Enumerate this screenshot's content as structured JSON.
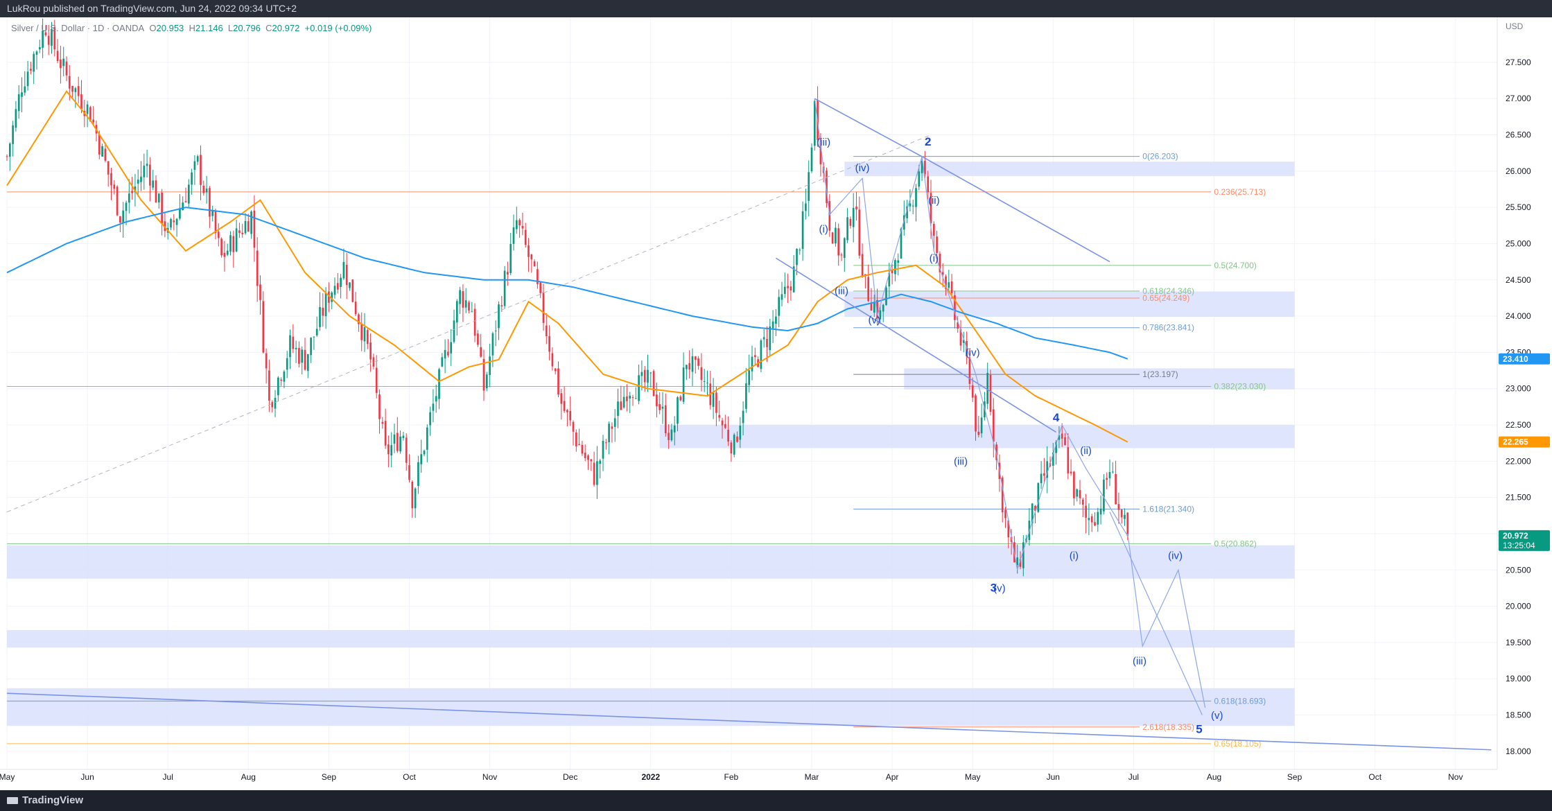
{
  "header": {
    "publisher": "LukRou published on TradingView.com, Jun 24, 2022 09:34 UTC+2"
  },
  "legend": {
    "symbol": "Silver / U.S. Dollar · 1D · OANDA",
    "o_label": "O",
    "o": "20.953",
    "h_label": "H",
    "h": "21.146",
    "l_label": "L",
    "l": "20.796",
    "c_label": "C",
    "c": "20.972",
    "change": "+0.019 (+0.09%)"
  },
  "footer": {
    "brand": "TradingView"
  },
  "colors": {
    "up": "#089981",
    "down": "#f23645",
    "ema_fast": "#ff9800",
    "ema_slow": "#2196f3",
    "zone": "#d9e1fb",
    "trendline": "#7b93e6",
    "wave_label": "#1848cc",
    "fib_orange": "#ff8a65",
    "fib_green": "#81c784",
    "fib_blue": "#6f9cd3"
  },
  "chart_data": {
    "type": "candlestick",
    "currency": "USD",
    "price_axis": {
      "ylim": [
        17.75,
        28.12
      ],
      "ticks": [
        18.0,
        18.5,
        19.0,
        19.5,
        20.0,
        20.5,
        21.0,
        21.5,
        22.0,
        22.5,
        23.0,
        23.5,
        24.0,
        24.5,
        25.0,
        25.5,
        26.0,
        26.5,
        27.0,
        27.5
      ],
      "tick_labels": [
        "18.000",
        "18.500",
        "19.000",
        "19.500",
        "20.000",
        "20.500",
        "21.000",
        "21.500",
        "22.000",
        "22.500",
        "23.000",
        "23.500",
        "24.000",
        "24.500",
        "25.000",
        "25.500",
        "26.000",
        "26.500",
        "27.000",
        "27.500"
      ],
      "last_price": "20.972",
      "countdown": "13:25:04",
      "ema_fast_value": "22.265",
      "ema_slow_value": "23.410"
    },
    "time_axis": {
      "labels": [
        "May",
        "Jun",
        "Jul",
        "Aug",
        "Sep",
        "Oct",
        "Nov",
        "Dec",
        "2022",
        "Feb",
        "Mar",
        "Apr",
        "May",
        "Jun",
        "Jul",
        "Aug",
        "Sep",
        "Oct",
        "Nov"
      ],
      "positions": [
        0,
        27,
        54,
        81,
        108,
        135,
        162,
        189,
        216,
        243,
        270,
        297,
        324,
        351,
        378,
        405,
        432,
        459,
        486
      ]
    },
    "anchors": [
      [
        0,
        26.2
      ],
      [
        5,
        27.2
      ],
      [
        13,
        28.0
      ],
      [
        20,
        27.3
      ],
      [
        28,
        26.8
      ],
      [
        38,
        25.4
      ],
      [
        47,
        26.1
      ],
      [
        54,
        25.1
      ],
      [
        64,
        26.1
      ],
      [
        72,
        24.8
      ],
      [
        82,
        25.4
      ],
      [
        88,
        22.8
      ],
      [
        95,
        23.6
      ],
      [
        100,
        23.4
      ],
      [
        108,
        24.3
      ],
      [
        113,
        24.7
      ],
      [
        122,
        23.4
      ],
      [
        127,
        22.1
      ],
      [
        133,
        22.4
      ],
      [
        136,
        21.5
      ],
      [
        142,
        22.6
      ],
      [
        148,
        23.6
      ],
      [
        152,
        24.3
      ],
      [
        156,
        24.1
      ],
      [
        160,
        23.0
      ],
      [
        165,
        24.1
      ],
      [
        171,
        25.3
      ],
      [
        176,
        24.7
      ],
      [
        181,
        23.8
      ],
      [
        186,
        22.8
      ],
      [
        191,
        22.3
      ],
      [
        197,
        21.8
      ],
      [
        203,
        22.5
      ],
      [
        208,
        23.0
      ],
      [
        216,
        23.1
      ],
      [
        223,
        22.3
      ],
      [
        228,
        23.4
      ],
      [
        235,
        23.0
      ],
      [
        240,
        22.5
      ],
      [
        244,
        22.2
      ],
      [
        249,
        23.2
      ],
      [
        255,
        23.7
      ],
      [
        260,
        24.2
      ],
      [
        264,
        24.6
      ],
      [
        268,
        25.5
      ],
      [
        271,
        26.9
      ],
      [
        276,
        25.3
      ],
      [
        280,
        24.8
      ],
      [
        284,
        25.6
      ],
      [
        288,
        24.4
      ],
      [
        293,
        24.0
      ],
      [
        298,
        24.8
      ],
      [
        303,
        25.5
      ],
      [
        307,
        26.2
      ],
      [
        311,
        25.0
      ],
      [
        315,
        24.5
      ],
      [
        319,
        23.8
      ],
      [
        323,
        23.2
      ],
      [
        326,
        22.2
      ],
      [
        329,
        23.2
      ],
      [
        332,
        22.0
      ],
      [
        336,
        20.9
      ],
      [
        339,
        20.5
      ],
      [
        342,
        21.0
      ],
      [
        348,
        21.8
      ],
      [
        354,
        22.3
      ],
      [
        358,
        21.6
      ],
      [
        362,
        21.2
      ],
      [
        366,
        21.3
      ],
      [
        370,
        21.9
      ],
      [
        374,
        21.2
      ],
      [
        376,
        20.97
      ]
    ],
    "ema_fast_anchors": [
      [
        0,
        25.8
      ],
      [
        20,
        27.1
      ],
      [
        28,
        26.7
      ],
      [
        45,
        25.6
      ],
      [
        60,
        24.9
      ],
      [
        75,
        25.3
      ],
      [
        85,
        25.6
      ],
      [
        100,
        24.6
      ],
      [
        115,
        24.0
      ],
      [
        130,
        23.6
      ],
      [
        145,
        23.1
      ],
      [
        155,
        23.3
      ],
      [
        165,
        23.4
      ],
      [
        175,
        24.2
      ],
      [
        185,
        23.9
      ],
      [
        200,
        23.2
      ],
      [
        215,
        23.0
      ],
      [
        235,
        22.9
      ],
      [
        250,
        23.3
      ],
      [
        262,
        23.6
      ],
      [
        272,
        24.2
      ],
      [
        282,
        24.5
      ],
      [
        292,
        24.6
      ],
      [
        305,
        24.7
      ],
      [
        315,
        24.4
      ],
      [
        325,
        23.8
      ],
      [
        335,
        23.2
      ],
      [
        345,
        22.9
      ],
      [
        355,
        22.7
      ],
      [
        365,
        22.5
      ],
      [
        376,
        22.265
      ]
    ],
    "ema_slow_anchors": [
      [
        0,
        24.6
      ],
      [
        20,
        25.0
      ],
      [
        40,
        25.3
      ],
      [
        60,
        25.5
      ],
      [
        80,
        25.4
      ],
      [
        100,
        25.1
      ],
      [
        120,
        24.8
      ],
      [
        140,
        24.6
      ],
      [
        160,
        24.5
      ],
      [
        175,
        24.5
      ],
      [
        190,
        24.4
      ],
      [
        210,
        24.2
      ],
      [
        230,
        24.0
      ],
      [
        250,
        23.85
      ],
      [
        262,
        23.8
      ],
      [
        272,
        23.9
      ],
      [
        282,
        24.1
      ],
      [
        292,
        24.2
      ],
      [
        300,
        24.3
      ],
      [
        310,
        24.2
      ],
      [
        320,
        24.05
      ],
      [
        332,
        23.9
      ],
      [
        345,
        23.7
      ],
      [
        358,
        23.6
      ],
      [
        370,
        23.5
      ],
      [
        376,
        23.41
      ]
    ],
    "zones": [
      {
        "x0": 281,
        "x1": 432,
        "y0": 25.93,
        "y1": 26.13
      },
      {
        "x0": 281,
        "x1": 432,
        "y0": 23.99,
        "y1": 24.34
      },
      {
        "x0": 301,
        "x1": 432,
        "y0": 22.99,
        "y1": 23.28
      },
      {
        "x0": 219,
        "x1": 432,
        "y0": 22.18,
        "y1": 22.5
      },
      {
        "x0": 0,
        "x1": 432,
        "y0": 20.38,
        "y1": 20.84
      },
      {
        "x0": 0,
        "x1": 432,
        "y0": 19.43,
        "y1": 19.67
      },
      {
        "x0": 0,
        "x1": 432,
        "y0": 18.35,
        "y1": 18.87
      }
    ],
    "fib_levels": [
      {
        "label": "0(26.203)",
        "y": 26.203,
        "x0": 284,
        "x1": 380,
        "label_x": 381,
        "color": "#6f9cd3"
      },
      {
        "label": "0.236(25.713)",
        "y": 25.713,
        "x0": 0,
        "x1": 404,
        "label_x": 405,
        "color": "#ff8a65"
      },
      {
        "label": "0.5(24.700)",
        "y": 24.7,
        "x0": 284,
        "x1": 404,
        "label_x": 405,
        "color": "#81c784"
      },
      {
        "label": "0.618(24.346)",
        "y": 24.346,
        "x0": 284,
        "x1": 380,
        "label_x": 381,
        "color": "#81c784"
      },
      {
        "label": "0.65(24.249)",
        "y": 24.249,
        "x0": 284,
        "x1": 380,
        "label_x": 381,
        "color": "#ff8a65"
      },
      {
        "label": "0.786(23.841)",
        "y": 23.841,
        "x0": 284,
        "x1": 380,
        "label_x": 381,
        "color": "#6f9cd3"
      },
      {
        "label": "1(23.197)",
        "y": 23.197,
        "x0": 284,
        "x1": 380,
        "label_x": 381,
        "color": "#787b86"
      },
      {
        "label": "0.382(23.030)",
        "y": 23.03,
        "x0": 0,
        "x1": 404,
        "label_x": 405,
        "color": "#81c784"
      },
      {
        "label": "1.618(21.340)",
        "y": 21.34,
        "x0": 284,
        "x1": 380,
        "label_x": 381,
        "color": "#6f9cd3"
      },
      {
        "label": "0.5(20.862)",
        "y": 20.862,
        "x0": 0,
        "x1": 404,
        "label_x": 405,
        "color": "#81c784"
      },
      {
        "label": "0.618(18.693)",
        "y": 18.693,
        "x0": 0,
        "x1": 404,
        "label_x": 405,
        "color": "#6f9cd3"
      },
      {
        "label": "2.618(18.335)",
        "y": 18.335,
        "x0": 284,
        "x1": 380,
        "label_x": 381,
        "color": "#ff8a65"
      },
      {
        "label": "0.65(18.105)",
        "y": 18.105,
        "x0": 0,
        "x1": 404,
        "label_x": 405,
        "color": "#ffb74d"
      }
    ],
    "trendlines": [
      {
        "points": [
          [
            271,
            27.0
          ],
          [
            307,
            26.2
          ],
          [
            370,
            24.75
          ]
        ],
        "dash": false
      },
      {
        "points": [
          [
            258,
            24.8
          ],
          [
            352,
            22.4
          ]
        ],
        "dash": false
      },
      {
        "points": [
          [
            0,
            18.8
          ],
          [
            498,
            18.02
          ]
        ],
        "dash": false
      },
      {
        "points": [
          [
            0,
            21.3
          ],
          [
            310,
            26.5
          ]
        ],
        "dash": true
      }
    ],
    "wave_paths": [
      [
        [
          271,
          27.0
        ],
        [
          276,
          25.4
        ],
        [
          287,
          25.9
        ],
        [
          292,
          24.0
        ],
        [
          307,
          26.2
        ],
        [
          311,
          24.9
        ],
        [
          325,
          23.2
        ],
        [
          332,
          22.1
        ],
        [
          339,
          20.5
        ],
        [
          354,
          22.5
        ],
        [
          362,
          21.9
        ],
        [
          376,
          20.97
        ]
      ],
      [
        [
          376,
          21.0
        ],
        [
          381,
          19.45
        ],
        [
          393,
          20.5
        ],
        [
          402,
          18.6
        ]
      ],
      [
        [
          370,
          21.3
        ],
        [
          401,
          18.5
        ]
      ]
    ],
    "wave_labels": [
      {
        "text": "2",
        "x": 309,
        "y": 26.35,
        "size": 17
      },
      {
        "text": "(iii)",
        "x": 274,
        "y": 26.35,
        "size": 15
      },
      {
        "text": "(iv)",
        "x": 287,
        "y": 26.0,
        "size": 15
      },
      {
        "text": "(i)",
        "x": 274,
        "y": 25.15,
        "size": 15
      },
      {
        "text": "(iii)",
        "x": 280,
        "y": 24.3,
        "size": 15
      },
      {
        "text": "(v)",
        "x": 291,
        "y": 23.9,
        "size": 15
      },
      {
        "text": "(ii)",
        "x": 311,
        "y": 25.55,
        "size": 15
      },
      {
        "text": "(i)",
        "x": 311,
        "y": 24.75,
        "size": 15
      },
      {
        "text": "(iv)",
        "x": 324,
        "y": 23.45,
        "size": 15
      },
      {
        "text": "(iii)",
        "x": 320,
        "y": 21.95,
        "size": 15
      },
      {
        "text": "3",
        "x": 331,
        "y": 20.2,
        "size": 17
      },
      {
        "text": "(v)",
        "x": 333,
        "y": 20.2,
        "size": 15
      },
      {
        "text": "4",
        "x": 352,
        "y": 22.55,
        "size": 17
      },
      {
        "text": "(ii)",
        "x": 362,
        "y": 22.1,
        "size": 15
      },
      {
        "text": "(i)",
        "x": 358,
        "y": 20.65,
        "size": 15
      },
      {
        "text": "(iv)",
        "x": 392,
        "y": 20.65,
        "size": 15
      },
      {
        "text": "(iii)",
        "x": 380,
        "y": 19.2,
        "size": 15
      },
      {
        "text": "(v)",
        "x": 406,
        "y": 18.45,
        "size": 15
      },
      {
        "text": "5",
        "x": 400,
        "y": 18.25,
        "size": 17
      }
    ]
  }
}
